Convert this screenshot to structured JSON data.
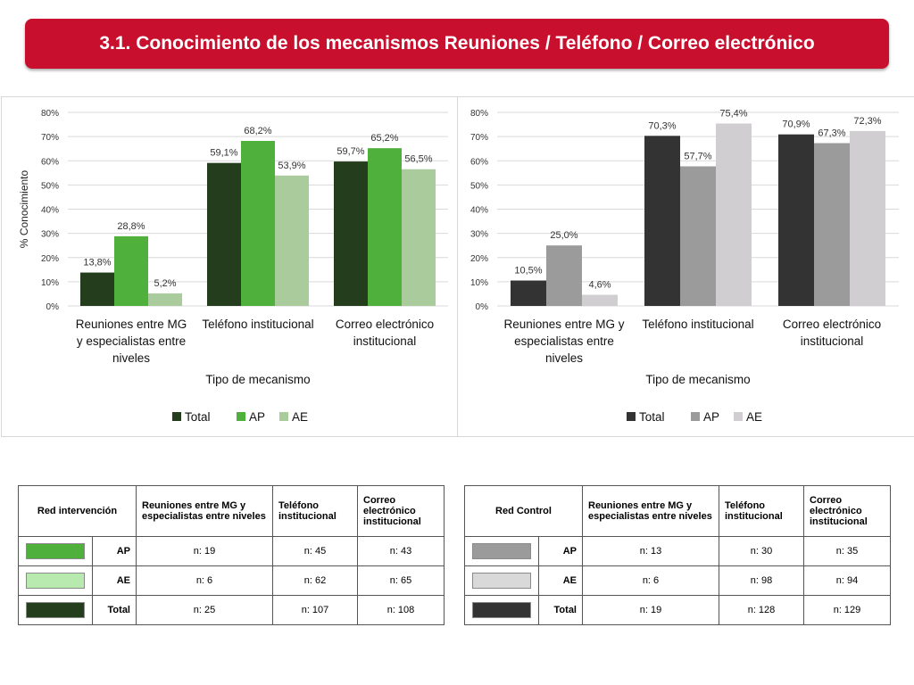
{
  "title": "3.1. Conocimiento de los mecanismos Reuniones / Teléfono / Correo electrónico",
  "chart_data": [
    {
      "type": "bar",
      "title": "",
      "xlabel": "Tipo de mecanismo",
      "ylabel": "% Conocimiento",
      "ylim": [
        0,
        80
      ],
      "ytick_labels": [
        "0%",
        "10%",
        "20%",
        "30%",
        "40%",
        "50%",
        "60%",
        "70%",
        "80%"
      ],
      "categories": [
        [
          "Reuniones entre MG",
          "y especialistas entre",
          "niveles"
        ],
        [
          "Teléfono institucional"
        ],
        [
          "Correo electrónico",
          "institucional"
        ]
      ],
      "series": [
        {
          "name": "Total",
          "color": "#243d1c",
          "values": [
            13.8,
            59.1,
            59.7
          ],
          "labels": [
            "13,8%",
            "59,1%",
            "59,7%"
          ]
        },
        {
          "name": "AP",
          "color": "#4fb03b",
          "values": [
            28.8,
            68.2,
            65.2
          ],
          "labels": [
            "28,8%",
            "68,2%",
            "65,2%"
          ]
        },
        {
          "name": "AE",
          "color": "#aacb9b",
          "values": [
            5.2,
            53.9,
            56.5
          ],
          "labels": [
            "5,2%",
            "53,9%",
            "56,5%"
          ]
        }
      ],
      "grid": true,
      "legend": "bottom"
    },
    {
      "type": "bar",
      "title": "",
      "xlabel": "Tipo de mecanismo",
      "ylabel": "",
      "ylim": [
        0,
        80
      ],
      "ytick_labels": [
        "0%",
        "10%",
        "20%",
        "30%",
        "40%",
        "50%",
        "60%",
        "70%",
        "80%"
      ],
      "categories": [
        [
          "Reuniones entre MG y",
          "especialistas entre",
          "niveles"
        ],
        [
          "Teléfono institucional"
        ],
        [
          "Correo electrónico",
          "institucional"
        ]
      ],
      "series": [
        {
          "name": "Total",
          "color": "#333333",
          "values": [
            10.5,
            70.3,
            70.9
          ],
          "labels": [
            "10,5%",
            "70,3%",
            "70,9%"
          ]
        },
        {
          "name": "AP",
          "color": "#9b9b9b",
          "values": [
            25.0,
            57.7,
            67.3
          ],
          "labels": [
            "25,0%",
            "57,7%",
            "67,3%"
          ]
        },
        {
          "name": "AE",
          "color": "#d0ced0",
          "values": [
            4.6,
            75.4,
            72.3
          ],
          "labels": [
            "4,6%",
            "75,4%",
            "72,3%"
          ]
        }
      ],
      "grid": true,
      "legend": "bottom"
    }
  ],
  "tables": {
    "left": {
      "corner": "Red intervención",
      "headers": [
        "Reuniones entre MG y especialistas entre niveles",
        "Teléfono institucional",
        "Correo electrónico institucional"
      ],
      "rows": [
        {
          "label": "AP",
          "color": "#4fb03b",
          "cells": [
            "n: 19",
            "n: 45",
            "n: 43"
          ]
        },
        {
          "label": "AE",
          "color": "#b8eab0",
          "cells": [
            "n: 6",
            "n: 62",
            "n: 65"
          ]
        },
        {
          "label": "Total",
          "color": "#243d1c",
          "cells": [
            "n: 25",
            "n: 107",
            "n: 108"
          ]
        }
      ]
    },
    "right": {
      "corner": "Red Control",
      "headers": [
        "Reuniones entre MG y especialistas entre niveles",
        "Teléfono institucional",
        "Correo electrónico institucional"
      ],
      "rows": [
        {
          "label": "AP",
          "color": "#9b9b9b",
          "cells": [
            "n: 13",
            "n: 30",
            "n: 35"
          ]
        },
        {
          "label": "AE",
          "color": "#d9d9d9",
          "cells": [
            "n: 6",
            "n: 98",
            "n: 94"
          ]
        },
        {
          "label": "Total",
          "color": "#333333",
          "cells": [
            "n: 19",
            "n: 128",
            "n: 129"
          ]
        }
      ]
    }
  }
}
